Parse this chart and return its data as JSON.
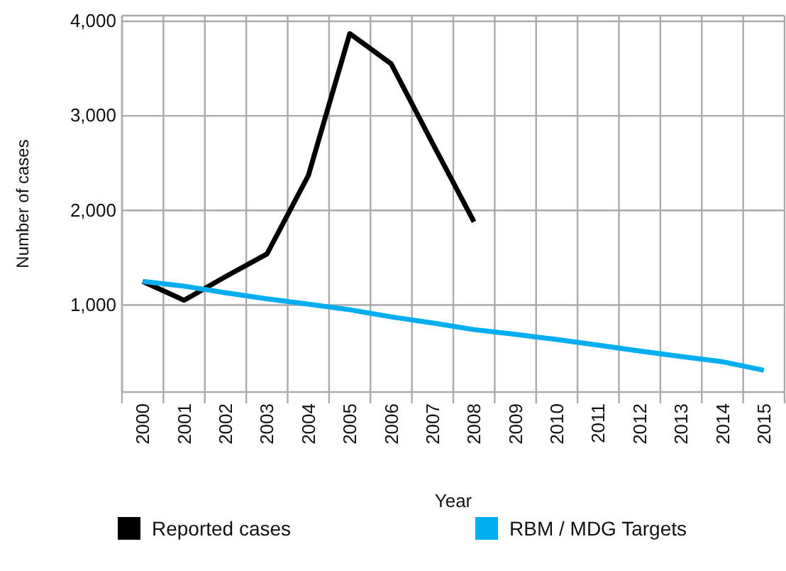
{
  "chart_data": {
    "type": "line",
    "xlabel": "Year",
    "ylabel": "Number of cases",
    "categories": [
      "2000",
      "2001",
      "2002",
      "2003",
      "2004",
      "2005",
      "2006",
      "2007",
      "2008",
      "2009",
      "2010",
      "2011",
      "2012",
      "2013",
      "2014",
      "2015"
    ],
    "series": [
      {
        "name": "Reported cases",
        "color": "#000000",
        "values": [
          1250,
          1050,
          1300,
          1540,
          2370,
          3870,
          3550,
          2710,
          1880,
          null,
          null,
          null,
          null,
          null,
          null,
          null
        ]
      },
      {
        "name": "RBM / MDG Targets",
        "color": "#00aeef",
        "values": [
          1250,
          1200,
          1130,
          1065,
          1010,
          950,
          875,
          810,
          740,
          690,
          635,
          575,
          514,
          455,
          400,
          310
        ]
      }
    ],
    "ylim": [
      80,
      4060
    ],
    "yticks": [
      {
        "value": 1000,
        "label": "1,000"
      },
      {
        "value": 2000,
        "label": "2,000"
      },
      {
        "value": 3000,
        "label": "3,000"
      },
      {
        "value": 4000,
        "label": "4,000"
      }
    ],
    "grid": true,
    "legend": "bottom",
    "marker": "none",
    "line_style": "solid"
  }
}
